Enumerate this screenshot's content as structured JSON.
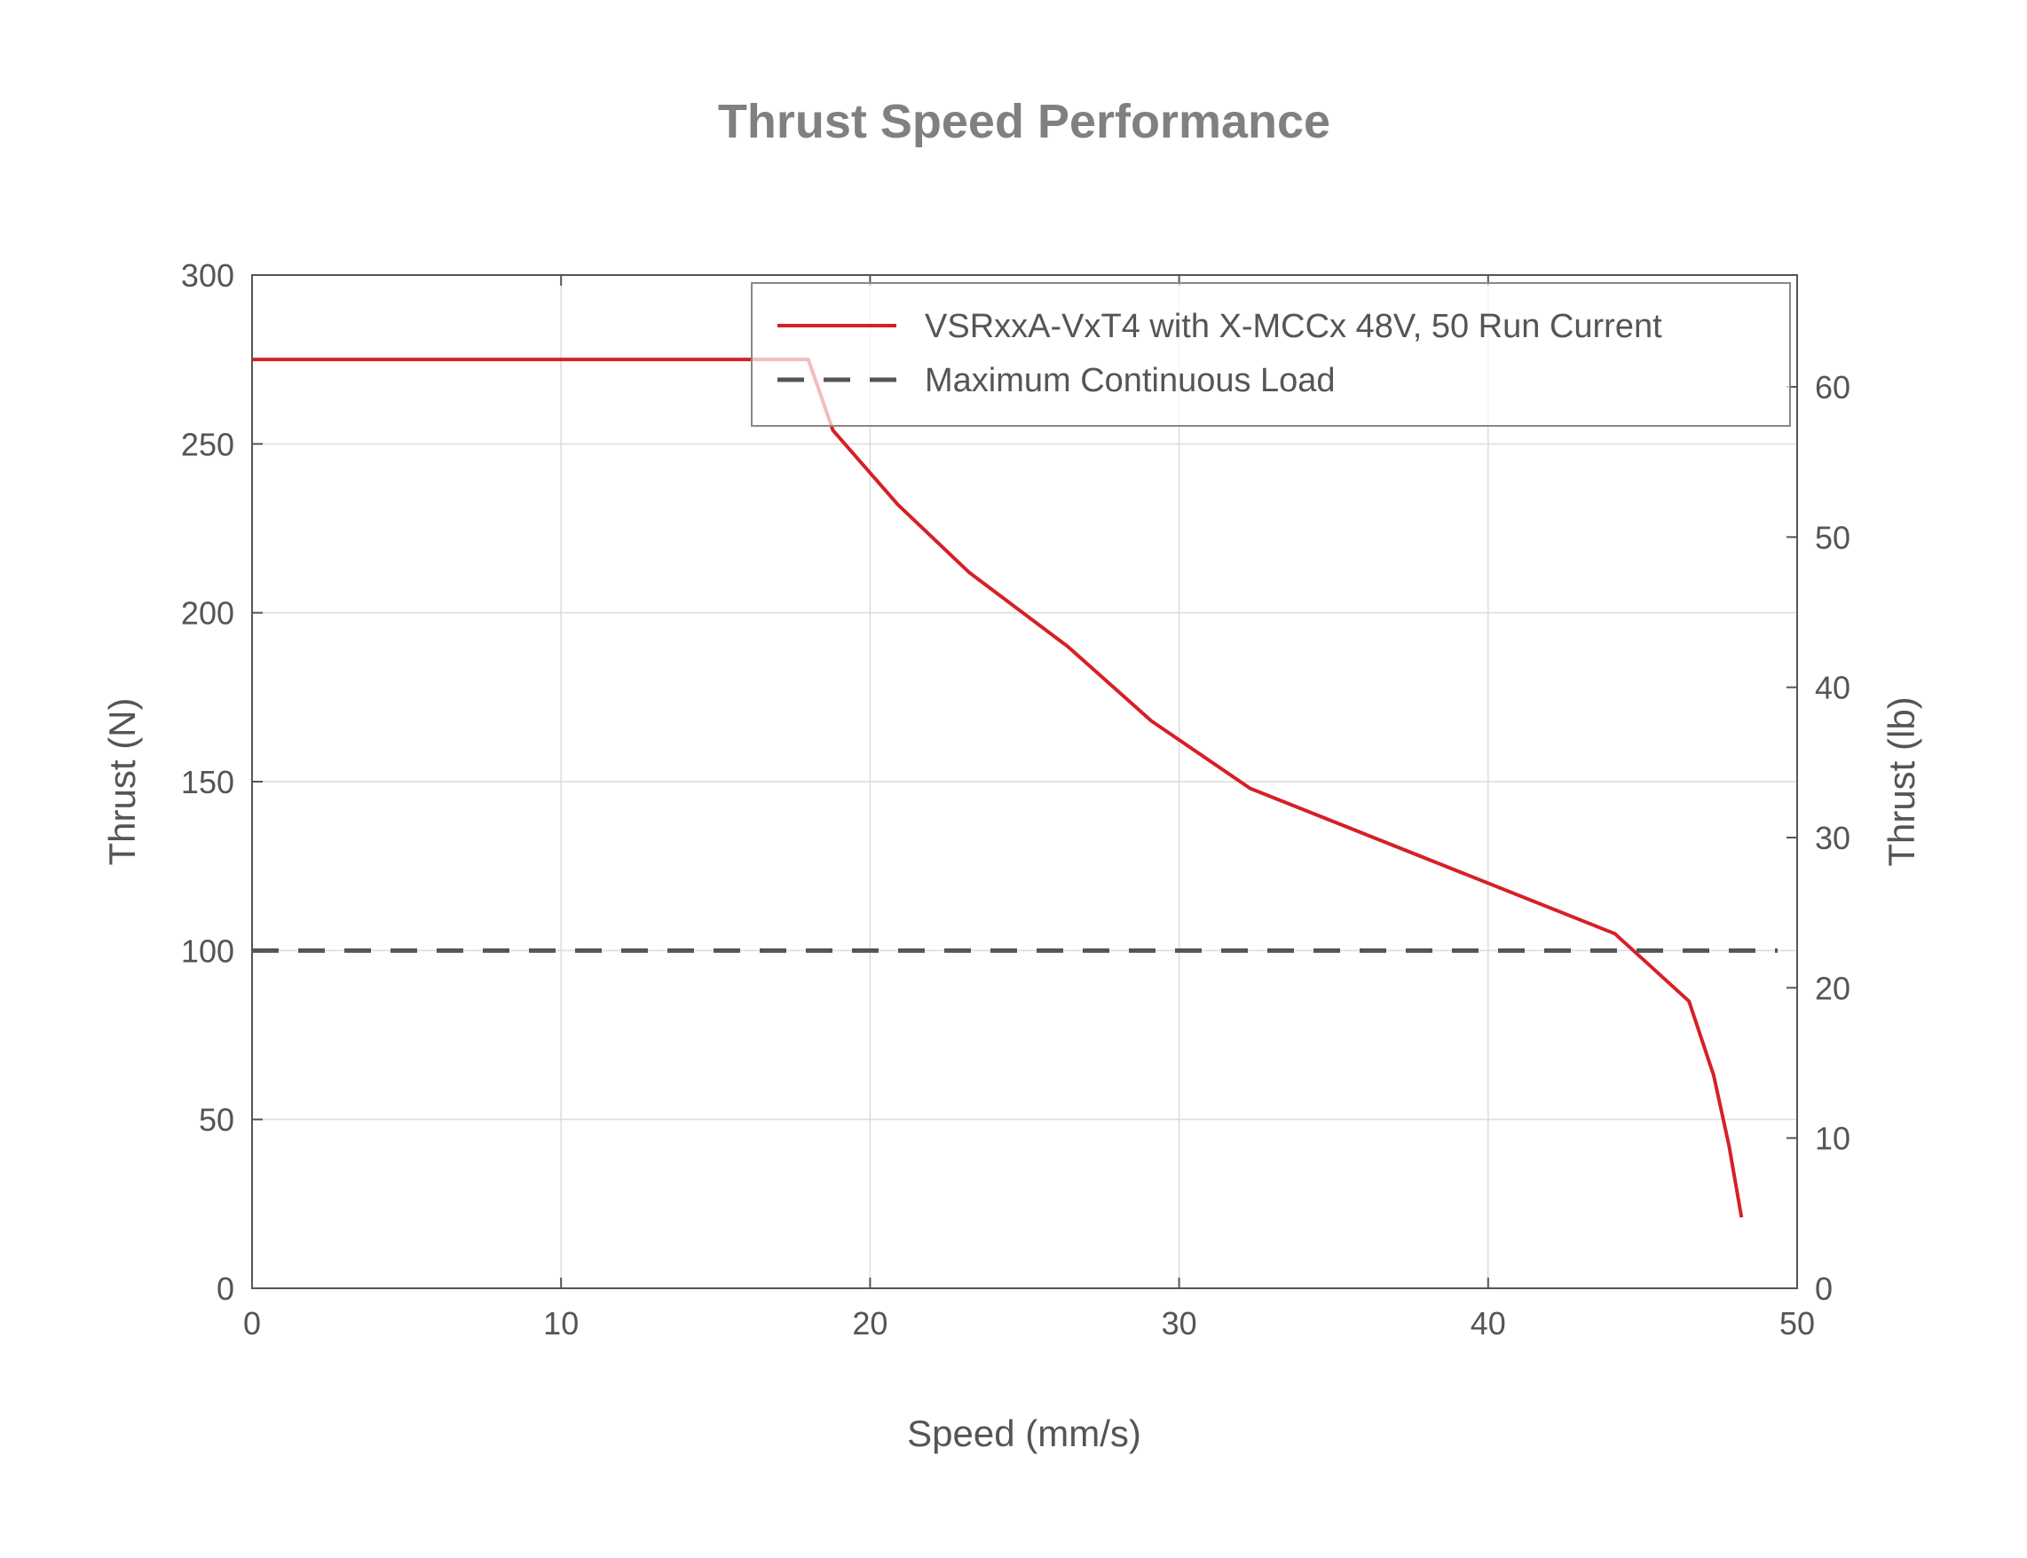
{
  "chart_data": {
    "type": "line",
    "title": "Thrust Speed Performance",
    "xlabel": "Speed (mm/s)",
    "ylabel": "Thrust (N)",
    "y2label": "Thrust (lb)",
    "xlim": [
      0,
      50
    ],
    "ylim": [
      0,
      300
    ],
    "y2lim": [
      0,
      67.44
    ],
    "xticks": [
      0,
      10,
      20,
      30,
      40,
      50
    ],
    "yticks": [
      0,
      50,
      100,
      150,
      200,
      250,
      300
    ],
    "y2ticks": [
      0,
      10,
      20,
      30,
      40,
      50,
      60
    ],
    "grid": true,
    "legend_position": "top-right",
    "series": [
      {
        "name": "VSRxxA-VxT4 with X-MCCx 48V, 50 Run Current",
        "color": "#d62027",
        "style": "solid",
        "x": [
          0,
          18.0,
          18.8,
          20.9,
          23.2,
          26.4,
          29.1,
          32.3,
          44.1,
          46.5,
          47.3,
          47.8,
          48.2
        ],
        "y": [
          275,
          275,
          254,
          232,
          212,
          190,
          168,
          148,
          105,
          85,
          63,
          42,
          21
        ]
      },
      {
        "name": "Maximum Continuous Load",
        "color": "#555555",
        "style": "dashed",
        "x": [
          0,
          50
        ],
        "y": [
          100,
          100
        ]
      }
    ]
  }
}
